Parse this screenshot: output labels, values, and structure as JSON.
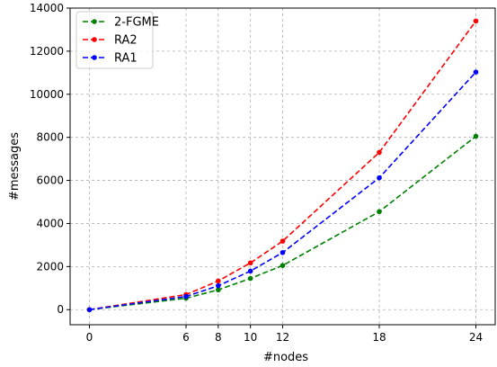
{
  "chart_data": {
    "type": "line",
    "title": "",
    "xlabel": "#nodes",
    "ylabel": "#messages",
    "x": [
      0,
      6,
      8,
      10,
      12,
      18,
      24
    ],
    "xticks": [
      "0",
      "6",
      "8",
      "10",
      "12",
      "18",
      "24"
    ],
    "xlim": [
      -1.2,
      25.2
    ],
    "yticks": [
      "0",
      "2000",
      "4000",
      "6000",
      "8000",
      "10000",
      "12000",
      "14000"
    ],
    "ylim": [
      -700,
      14000
    ],
    "grid": true,
    "legend_position": "top-left",
    "series": [
      {
        "name": "2-FGME",
        "color": "#008000",
        "values": [
          0,
          530,
          920,
          1450,
          2050,
          4550,
          8050
        ]
      },
      {
        "name": "RA2",
        "color": "#ff0000",
        "values": [
          0,
          700,
          1330,
          2170,
          3180,
          7300,
          13400
        ]
      },
      {
        "name": "RA1",
        "color": "#0000ff",
        "values": [
          0,
          610,
          1110,
          1790,
          2650,
          6120,
          11030
        ]
      }
    ]
  }
}
